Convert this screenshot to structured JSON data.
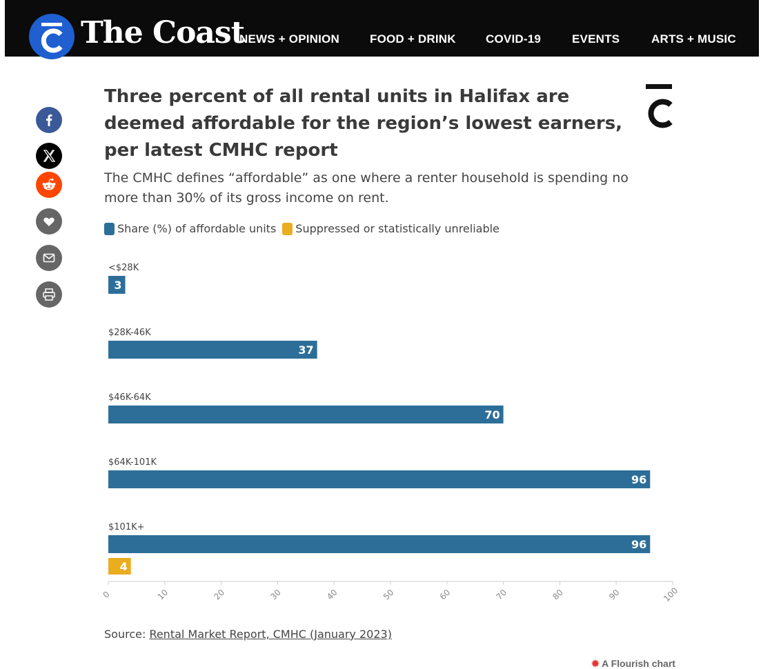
{
  "header": {
    "brand": "The Coast",
    "nav": [
      "NEWS + OPINION",
      "FOOD + DRINK",
      "COVID-19",
      "EVENTS",
      "ARTS + MUSIC"
    ]
  },
  "share": [
    {
      "icon": "facebook-icon",
      "color": "#3b5998"
    },
    {
      "icon": "x-icon",
      "color": "#000000"
    },
    {
      "icon": "reddit-icon",
      "color": "#ff4500"
    },
    {
      "icon": "heart-icon",
      "color": "#666666"
    },
    {
      "icon": "email-icon",
      "color": "#666666"
    },
    {
      "icon": "print-icon",
      "color": "#666666"
    }
  ],
  "chart": {
    "source_prefix": "Source: ",
    "source_link": "Rental Market Report, CMHC (January 2023)",
    "credit": "A Flourish chart"
  },
  "chart_data": {
    "type": "bar",
    "orientation": "horizontal",
    "title": "Three percent of all rental units in Halifax are deemed affordable for the region’s lowest earners, per latest CMHC report",
    "subtitle": "The CMHC defines “affordable” as one where a renter household is spending no more than 30% of its gross income on rent.",
    "categories": [
      "<$28K",
      "$28K-46K",
      "$46K-64K",
      "$64K-101K",
      "$101K+"
    ],
    "series": [
      {
        "name": "Share (%) of affordable units",
        "color": "#2d6e99",
        "values": [
          3,
          37,
          70,
          96,
          96
        ]
      },
      {
        "name": "Suppressed or statistically unreliable",
        "color": "#e9ad1f",
        "values": [
          null,
          null,
          null,
          null,
          4
        ]
      }
    ],
    "xlim": [
      0,
      100
    ],
    "xticks": [
      0,
      10,
      20,
      30,
      40,
      50,
      60,
      70,
      80,
      90,
      100
    ],
    "legend": "top-left",
    "grid": false
  }
}
